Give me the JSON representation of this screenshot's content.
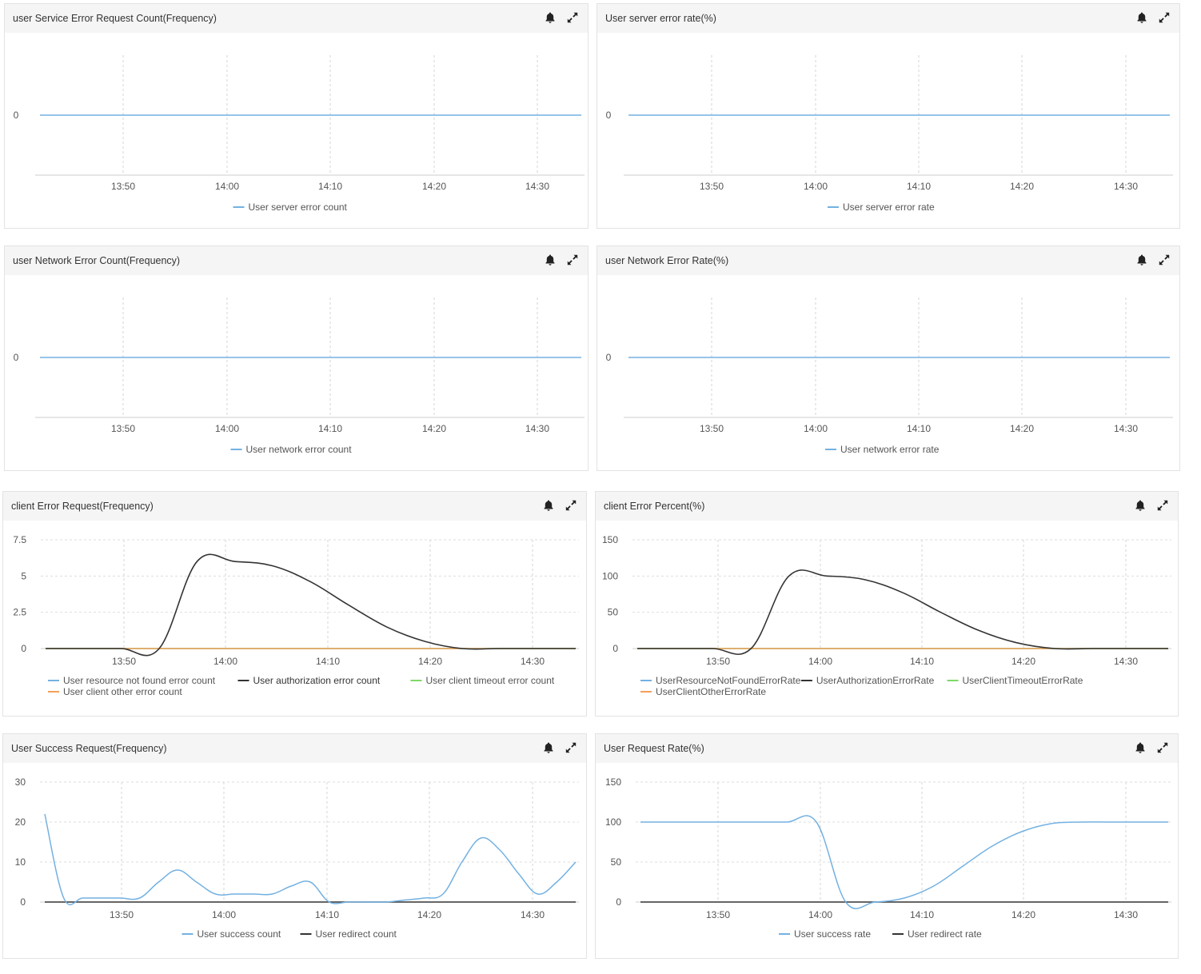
{
  "panels": [
    {
      "id": "p1",
      "title": "user Service Error Request Count(Frequency)",
      "x_ticks": [
        "13:50",
        "14:00",
        "14:10",
        "14:20",
        "14:30"
      ],
      "chart_data": {
        "type": "line",
        "title": "user Service Error Request Count(Frequency)",
        "y_ticks": [
          "0"
        ],
        "series": [
          {
            "name": "User server error count",
            "color": "#73b1e2",
            "values": [
              0,
              0
            ]
          }
        ]
      }
    },
    {
      "id": "p2",
      "title": "User server error rate(%)",
      "x_ticks": [
        "13:50",
        "14:00",
        "14:10",
        "14:20",
        "14:30"
      ],
      "chart_data": {
        "type": "line",
        "title": "User server error rate(%)",
        "y_ticks": [
          "0"
        ],
        "series": [
          {
            "name": "User server error rate",
            "color": "#73b1e2",
            "values": [
              0,
              0
            ]
          }
        ]
      }
    },
    {
      "id": "p3",
      "title": "user Network Error Count(Frequency)",
      "x_ticks": [
        "13:50",
        "14:00",
        "14:10",
        "14:20",
        "14:30"
      ],
      "chart_data": {
        "type": "line",
        "title": "user Network Error Count(Frequency)",
        "y_ticks": [
          "0"
        ],
        "series": [
          {
            "name": "User network error count",
            "color": "#73b1e2",
            "values": [
              0,
              0
            ]
          }
        ]
      }
    },
    {
      "id": "p4",
      "title": "user Network Error Rate(%)",
      "x_ticks": [
        "13:50",
        "14:00",
        "14:10",
        "14:20",
        "14:30"
      ],
      "chart_data": {
        "type": "line",
        "title": "user Network Error Rate(%)",
        "y_ticks": [
          "0"
        ],
        "series": [
          {
            "name": "User network error rate",
            "color": "#73b1e2",
            "values": [
              0,
              0
            ]
          }
        ]
      }
    },
    {
      "id": "p5",
      "title": "client Error Request(Frequency)",
      "x_ticks": [
        "13:50",
        "14:00",
        "14:10",
        "14:20",
        "14:30"
      ],
      "chart_data": {
        "type": "line",
        "title": "client Error Request(Frequency)",
        "y_ticks": [
          "0",
          "2.5",
          "5",
          "7.5"
        ],
        "ylim": [
          0,
          7.5
        ],
        "series": [
          {
            "name": "User resource not found error count",
            "color": "#73b1e2",
            "values": [
              0,
              0
            ]
          },
          {
            "name": "User authorization error count",
            "color": "#333333",
            "dark_label": true,
            "values": [
              0,
              0,
              0,
              0,
              6,
              6,
              5.7,
              4.6,
              3,
              1.5,
              0.5,
              0,
              0,
              0,
              0
            ]
          },
          {
            "name": "User client timeout error count",
            "color": "#7ed966",
            "values": [
              0,
              0
            ]
          },
          {
            "name": "User client other error count",
            "color": "#f5a05a",
            "values": [
              0,
              0
            ]
          }
        ]
      }
    },
    {
      "id": "p6",
      "title": "client Error Percent(%)",
      "x_ticks": [
        "13:50",
        "14:00",
        "14:10",
        "14:20",
        "14:30"
      ],
      "chart_data": {
        "type": "line",
        "title": "client Error Percent(%)",
        "y_ticks": [
          "0",
          "50",
          "100",
          "150"
        ],
        "ylim": [
          0,
          150
        ],
        "series": [
          {
            "name": "UserResourceNotFoundErrorRate",
            "color": "#73b1e2",
            "values": [
              0,
              0
            ]
          },
          {
            "name": "UserAuthorizationErrorRate",
            "color": "#333333",
            "values": [
              0,
              0,
              0,
              0,
              100,
              100,
              95,
              77,
              50,
              25,
              8,
              0,
              0,
              0,
              0
            ]
          },
          {
            "name": "UserClientTimeoutErrorRate",
            "color": "#7ed966",
            "values": [
              0,
              0
            ]
          },
          {
            "name": "UserClientOtherErrorRate",
            "color": "#f5a05a",
            "values": [
              0,
              0
            ]
          }
        ]
      }
    },
    {
      "id": "p7",
      "title": "User Success Request(Frequency)",
      "x_ticks": [
        "13:50",
        "14:00",
        "14:10",
        "14:20",
        "14:30"
      ],
      "chart_data": {
        "type": "line",
        "title": "User Success Request(Frequency)",
        "y_ticks": [
          "0",
          "10",
          "20",
          "30"
        ],
        "ylim": [
          0,
          30
        ],
        "series": [
          {
            "name": "User success count",
            "color": "#73b1e2",
            "values": [
              22,
              1,
              1,
              1,
              1,
              1,
              5,
              8,
              5,
              2,
              2,
              2,
              2,
              4,
              5,
              0,
              0,
              0,
              0,
              0.5,
              1,
              2,
              10,
              16,
              13,
              7,
              2,
              5,
              10
            ]
          },
          {
            "name": "User redirect count",
            "color": "#333333",
            "values": [
              0,
              0
            ]
          }
        ]
      }
    },
    {
      "id": "p8",
      "title": "User Request Rate(%)",
      "x_ticks": [
        "13:50",
        "14:00",
        "14:10",
        "14:20",
        "14:30"
      ],
      "chart_data": {
        "type": "line",
        "title": "User Request Rate(%)",
        "y_ticks": [
          "0",
          "50",
          "100",
          "150"
        ],
        "ylim": [
          0,
          150
        ],
        "series": [
          {
            "name": "User success rate",
            "color": "#73b1e2",
            "values": [
              100,
              100,
              100,
              100,
              100,
              100,
              100,
              0,
              0,
              5,
              20,
              45,
              70,
              88,
              98,
              100,
              100,
              100,
              100
            ]
          },
          {
            "name": "User redirect rate",
            "color": "#333333",
            "values": [
              0,
              0
            ]
          }
        ]
      }
    }
  ]
}
